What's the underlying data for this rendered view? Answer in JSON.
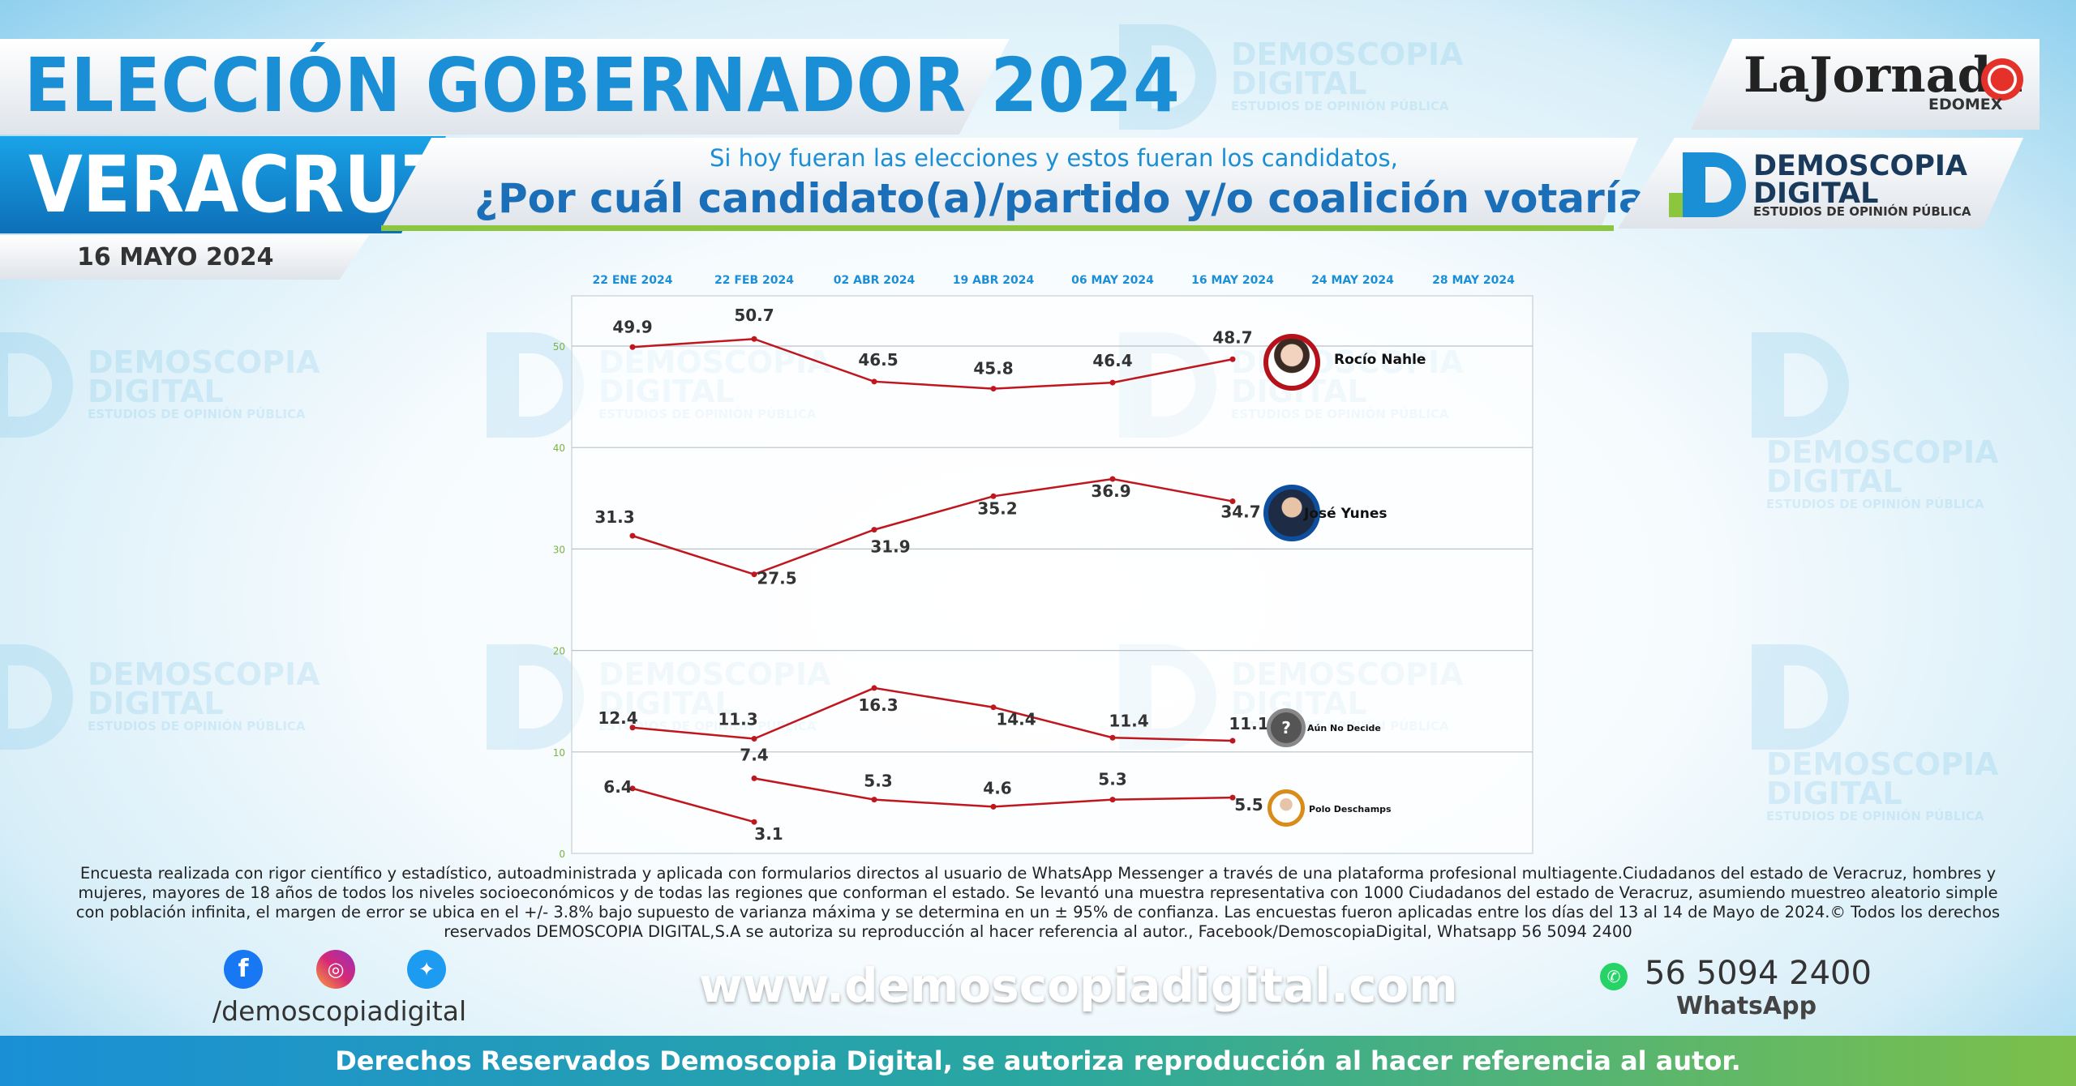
{
  "header": {
    "title": "ELECCIÓN GOBERNADOR 2024",
    "state": "VERACRUZ",
    "date": "16 MAYO 2024",
    "subquestion": "Si hoy fueran las elecciones y estos fueran los candidatos,",
    "question": "¿Por cuál candidato(a)/partido y/o coalición votaría?"
  },
  "logos": {
    "lajornada": "LaJornada",
    "edomex": "EDOMEX",
    "demoscopia_line1": "DEMOSCOPIA",
    "demoscopia_line2": "DIGITAL",
    "demoscopia_sub": "ESTUDIOS DE OPINIÓN PÚBLICA"
  },
  "watermark": {
    "line1": "DEMOSCOPIA",
    "line2": "DIGITAL",
    "line3": "ESTUDIOS DE OPINIÓN PÚBLICA"
  },
  "chart_data": {
    "type": "line",
    "x": [
      "22 ENE 2024",
      "22 FEB 2024",
      "02 ABR 2024",
      "19 ABR 2024",
      "06 MAY 2024",
      "16 MAY 2024",
      "24 MAY 2024",
      "28 MAY 2024"
    ],
    "ylim": [
      0,
      50
    ],
    "yticks": [
      0,
      10,
      20,
      30,
      40,
      50
    ],
    "grid": true,
    "series": [
      {
        "name": "Rocío Nahle",
        "values": [
          49.9,
          50.7,
          46.5,
          45.8,
          46.4,
          48.7,
          null,
          null
        ],
        "color": "#c0161e"
      },
      {
        "name": "José Yunes",
        "values": [
          31.3,
          27.5,
          31.9,
          35.2,
          36.9,
          34.7,
          null,
          null
        ],
        "color": "#c0161e"
      },
      {
        "name": "Aún No Decide",
        "values": [
          12.4,
          11.3,
          16.3,
          14.4,
          11.4,
          11.1,
          null,
          null
        ],
        "color": "#c0161e"
      },
      {
        "name": "Polo Deschamps",
        "values": [
          6.4,
          3.1,
          null,
          null,
          null,
          null,
          null,
          null
        ],
        "color": "#c0161e"
      },
      {
        "name": "Polo Deschamps",
        "values": [
          null,
          7.4,
          5.3,
          4.6,
          5.3,
          5.5,
          null,
          null
        ],
        "color": "#c0161e"
      }
    ],
    "photo_symbol": "?",
    "colors": {
      "line": "#c0161e",
      "axis": "#1b8fd6",
      "ytick": "#7cb342",
      "nahle_ring": "#b5121b",
      "yunes_ring": "#0d4f9c",
      "undecided_ring": "#888888",
      "polo_ring": "#d98c1a"
    }
  },
  "footer": {
    "note": "Encuesta realizada con rigor científico y estadístico, autoadministrada y aplicada con formularios directos al usuario de WhatsApp Messenger a través de una plataforma profesional multiagente.Ciudadanos del estado de Veracruz, hombres y mujeres, mayores de 18 años de todos los niveles socioeconómicos y de todas las regiones que conforman el estado. Se levantó una muestra representativa con 1000 Ciudadanos del estado de Veracruz, asumiendo muestreo aleatorio simple con población infinita, el margen de error se ubica en el +/- 3.8% bajo supuesto de varianza máxima y se determina en un ± 95% de confianza. Las encuestas fueron aplicadas entre los días del 13 al 14 de Mayo de 2024.© Todos los derechos reservados DEMOSCOPIA DIGITAL,S.A se autoriza su reproducción al hacer referencia al autor., Facebook/DemoscopiaDigital, Whatsapp 56 5094 2400",
    "handle": "/demoscopiadigital",
    "website": "www.demoscopiadigital.com",
    "phone": "56 5094 2400",
    "whatsapp": "WhatsApp",
    "rights": "Derechos Reservados Demoscopia Digital, se autoriza reproducción al hacer referencia al autor.",
    "icons": [
      "facebook-icon",
      "instagram-icon",
      "twitter-icon",
      "whatsapp-icon"
    ]
  }
}
